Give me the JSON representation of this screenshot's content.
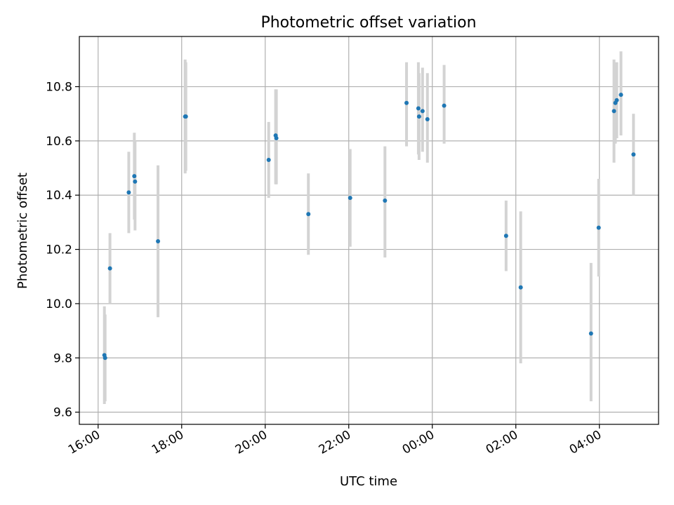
{
  "chart_data": {
    "type": "scatter",
    "title": "Photometric offset variation",
    "xlabel": "UTC time",
    "ylabel": "Photometric offset",
    "x_axis_kind": "time",
    "x_range": [
      "15:33",
      "05:25"
    ],
    "ylim": [
      9.555,
      10.985
    ],
    "grid": true,
    "x_ticks": [
      "16:00",
      "18:00",
      "20:00",
      "22:00",
      "00:00",
      "02:00",
      "04:00"
    ],
    "y_ticks": [
      "9.6",
      "9.8",
      "10.0",
      "10.2",
      "10.4",
      "10.6",
      "10.8"
    ],
    "colors": {
      "point": "#1f77b4",
      "errorbar": "#d3d3d3",
      "grid": "#b0b0b0"
    },
    "points": [
      {
        "x": "16:09",
        "y": 9.81,
        "ylo": 9.63,
        "yhi": 9.99
      },
      {
        "x": "16:10",
        "y": 9.8,
        "ylo": 9.64,
        "yhi": 9.96
      },
      {
        "x": "16:17",
        "y": 10.13,
        "ylo": 10.0,
        "yhi": 10.26
      },
      {
        "x": "16:44",
        "y": 10.41,
        "ylo": 10.26,
        "yhi": 10.56
      },
      {
        "x": "16:52",
        "y": 10.47,
        "ylo": 10.31,
        "yhi": 10.63
      },
      {
        "x": "16:53",
        "y": 10.45,
        "ylo": 10.27,
        "yhi": 10.6
      },
      {
        "x": "17:26",
        "y": 10.23,
        "ylo": 9.95,
        "yhi": 10.51
      },
      {
        "x": "18:05",
        "y": 10.69,
        "ylo": 10.48,
        "yhi": 10.9
      },
      {
        "x": "18:06",
        "y": 10.69,
        "ylo": 10.49,
        "yhi": 10.89
      },
      {
        "x": "20:05",
        "y": 10.53,
        "ylo": 10.39,
        "yhi": 10.67
      },
      {
        "x": "20:15",
        "y": 10.62,
        "ylo": 10.44,
        "yhi": 10.79
      },
      {
        "x": "20:16",
        "y": 10.61,
        "ylo": 10.44,
        "yhi": 10.79
      },
      {
        "x": "21:02",
        "y": 10.33,
        "ylo": 10.18,
        "yhi": 10.48
      },
      {
        "x": "22:02",
        "y": 10.39,
        "ylo": 10.21,
        "yhi": 10.57
      },
      {
        "x": "22:52",
        "y": 10.38,
        "ylo": 10.17,
        "yhi": 10.58
      },
      {
        "x": "23:23",
        "y": 10.74,
        "ylo": 10.58,
        "yhi": 10.89
      },
      {
        "x": "23:40",
        "y": 10.72,
        "ylo": 10.55,
        "yhi": 10.89
      },
      {
        "x": "23:41",
        "y": 10.69,
        "ylo": 10.53,
        "yhi": 10.85
      },
      {
        "x": "23:46",
        "y": 10.71,
        "ylo": 10.56,
        "yhi": 10.87
      },
      {
        "x": "23:53",
        "y": 10.68,
        "ylo": 10.52,
        "yhi": 10.85
      },
      {
        "x": "00:17",
        "y": 10.73,
        "ylo": 10.59,
        "yhi": 10.88
      },
      {
        "x": "01:46",
        "y": 10.25,
        "ylo": 10.12,
        "yhi": 10.38
      },
      {
        "x": "02:07",
        "y": 10.06,
        "ylo": 9.78,
        "yhi": 10.34
      },
      {
        "x": "03:48",
        "y": 9.89,
        "ylo": 9.64,
        "yhi": 10.15
      },
      {
        "x": "03:59",
        "y": 10.28,
        "ylo": 10.1,
        "yhi": 10.46
      },
      {
        "x": "04:21",
        "y": 10.71,
        "ylo": 10.52,
        "yhi": 10.9
      },
      {
        "x": "04:23",
        "y": 10.74,
        "ylo": 10.59,
        "yhi": 10.88
      },
      {
        "x": "04:25",
        "y": 10.75,
        "ylo": 10.61,
        "yhi": 10.89
      },
      {
        "x": "04:31",
        "y": 10.77,
        "ylo": 10.62,
        "yhi": 10.93
      },
      {
        "x": "04:49",
        "y": 10.55,
        "ylo": 10.4,
        "yhi": 10.7
      }
    ]
  }
}
